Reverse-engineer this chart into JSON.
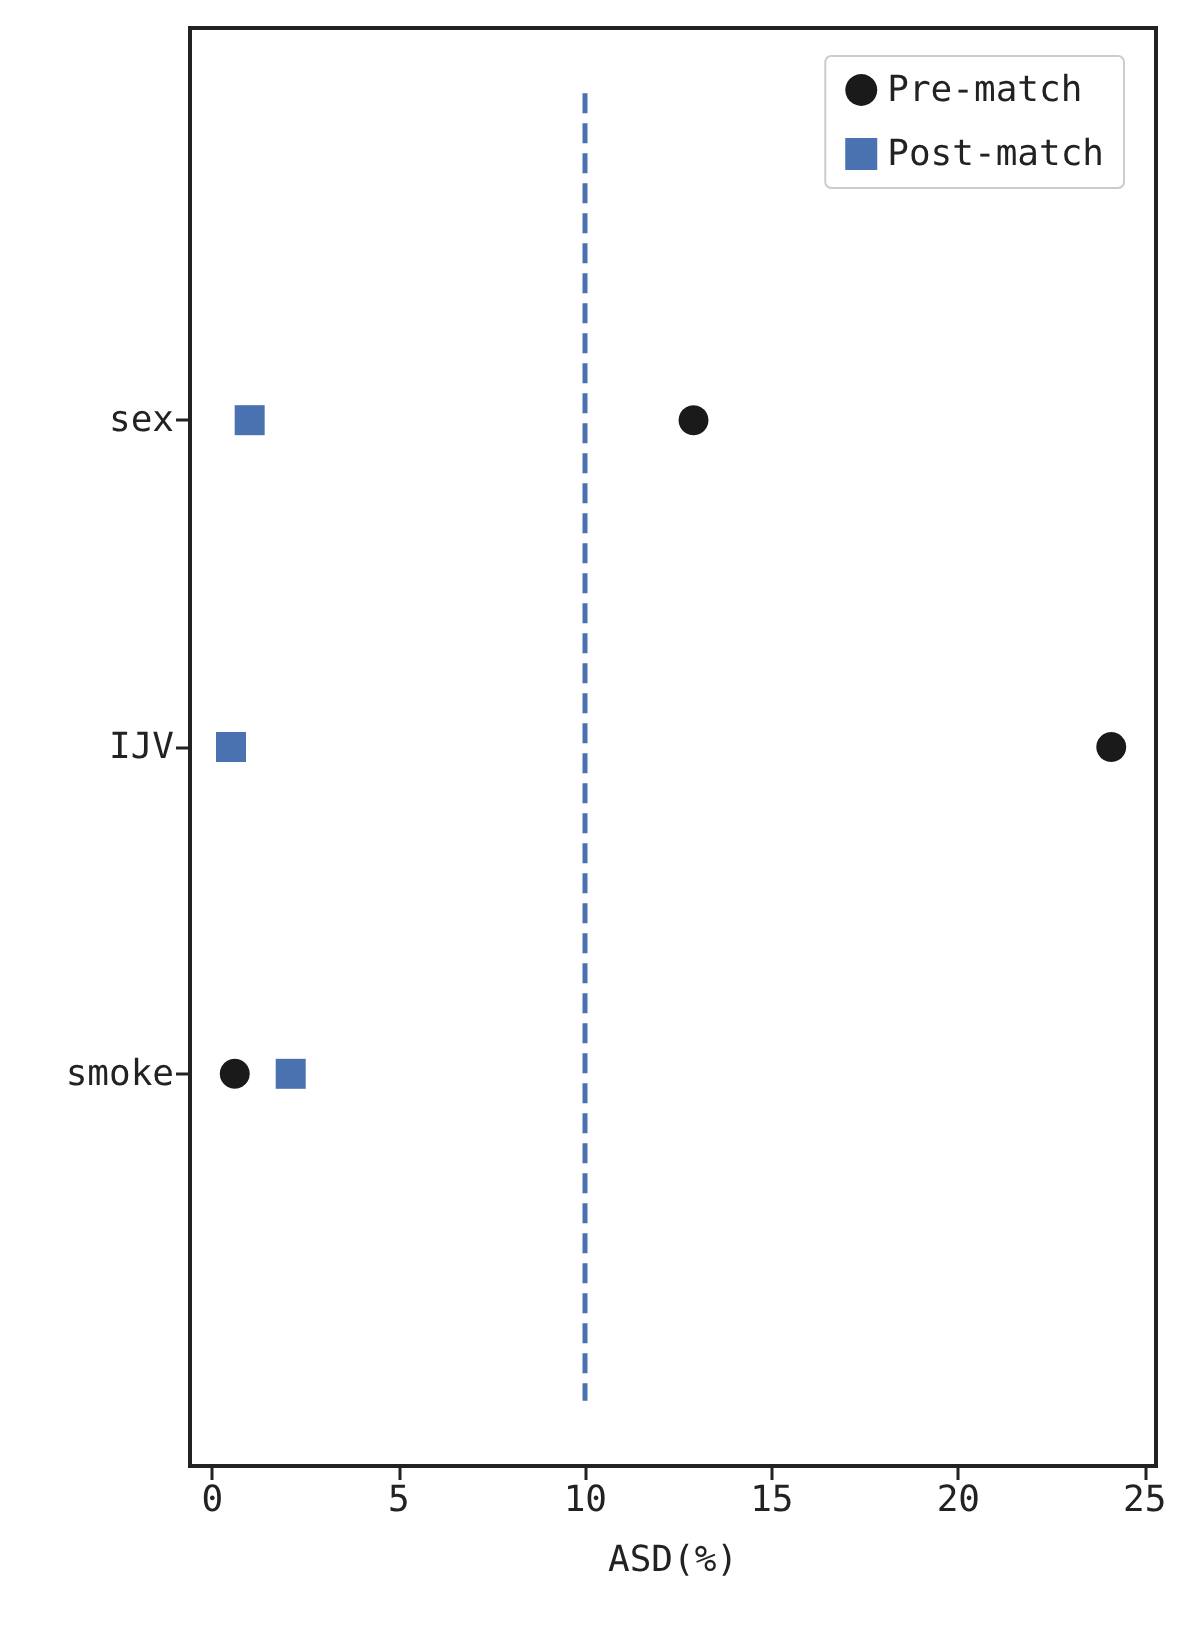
{
  "chart_data": {
    "type": "scatter",
    "xlabel": "ASD(%)",
    "categories": [
      "sex",
      "IJV",
      "smoke"
    ],
    "orientation": "horizontal",
    "series": [
      {
        "name": "Pre-match",
        "color": "#1a1a1a",
        "marker": "circle",
        "values": [
          12.9,
          24.1,
          0.6
        ]
      },
      {
        "name": "Post-match",
        "color": "#4a72b0",
        "marker": "square",
        "values": [
          1.0,
          0.5,
          2.1
        ]
      }
    ],
    "xlim": [
      -0.6,
      25.3
    ],
    "xticks": [
      0,
      5,
      10,
      15,
      20,
      25
    ],
    "ref_lines": [
      {
        "axis": "x",
        "value": 10,
        "color": "#4a72b0",
        "line_style": "dashed"
      }
    ],
    "legend": "top right",
    "grid": false
  }
}
